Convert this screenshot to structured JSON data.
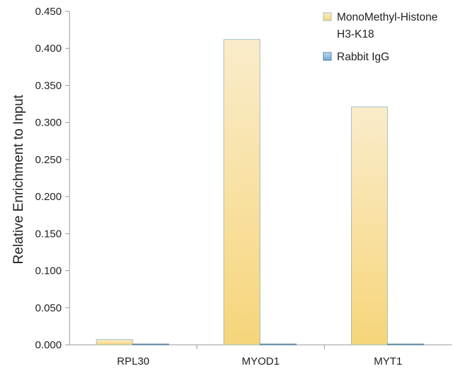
{
  "chart_data": {
    "type": "bar",
    "categories": [
      "RPL30",
      "MYOD1",
      "MYT1"
    ],
    "series": [
      {
        "name": "MonoMethyl-Histone H3-K18",
        "legend_lines": [
          "MonoMethyl-Histone",
          "H3-K18"
        ],
        "values": [
          0.007,
          0.412,
          0.321
        ],
        "color_top": "#faeccb",
        "color_bottom": "#f6d57a",
        "stroke": "#8fb5ad"
      },
      {
        "name": "Rabbit IgG",
        "legend_lines": [
          "Rabbit IgG"
        ],
        "values": [
          0.001,
          0.001,
          0.001
        ],
        "color_top": "#bcd8ef",
        "color_bottom": "#6fa9d8",
        "stroke": "#3f6f8f"
      }
    ],
    "ylabel": "Relative Enrichment to Input",
    "xlabel": "",
    "ylim": [
      0,
      0.45
    ],
    "yticks": [
      "0.000",
      "0.050",
      "0.100",
      "0.150",
      "0.200",
      "0.250",
      "0.300",
      "0.350",
      "0.400",
      "0.450"
    ],
    "grid": false,
    "legend_position": "top-right"
  }
}
